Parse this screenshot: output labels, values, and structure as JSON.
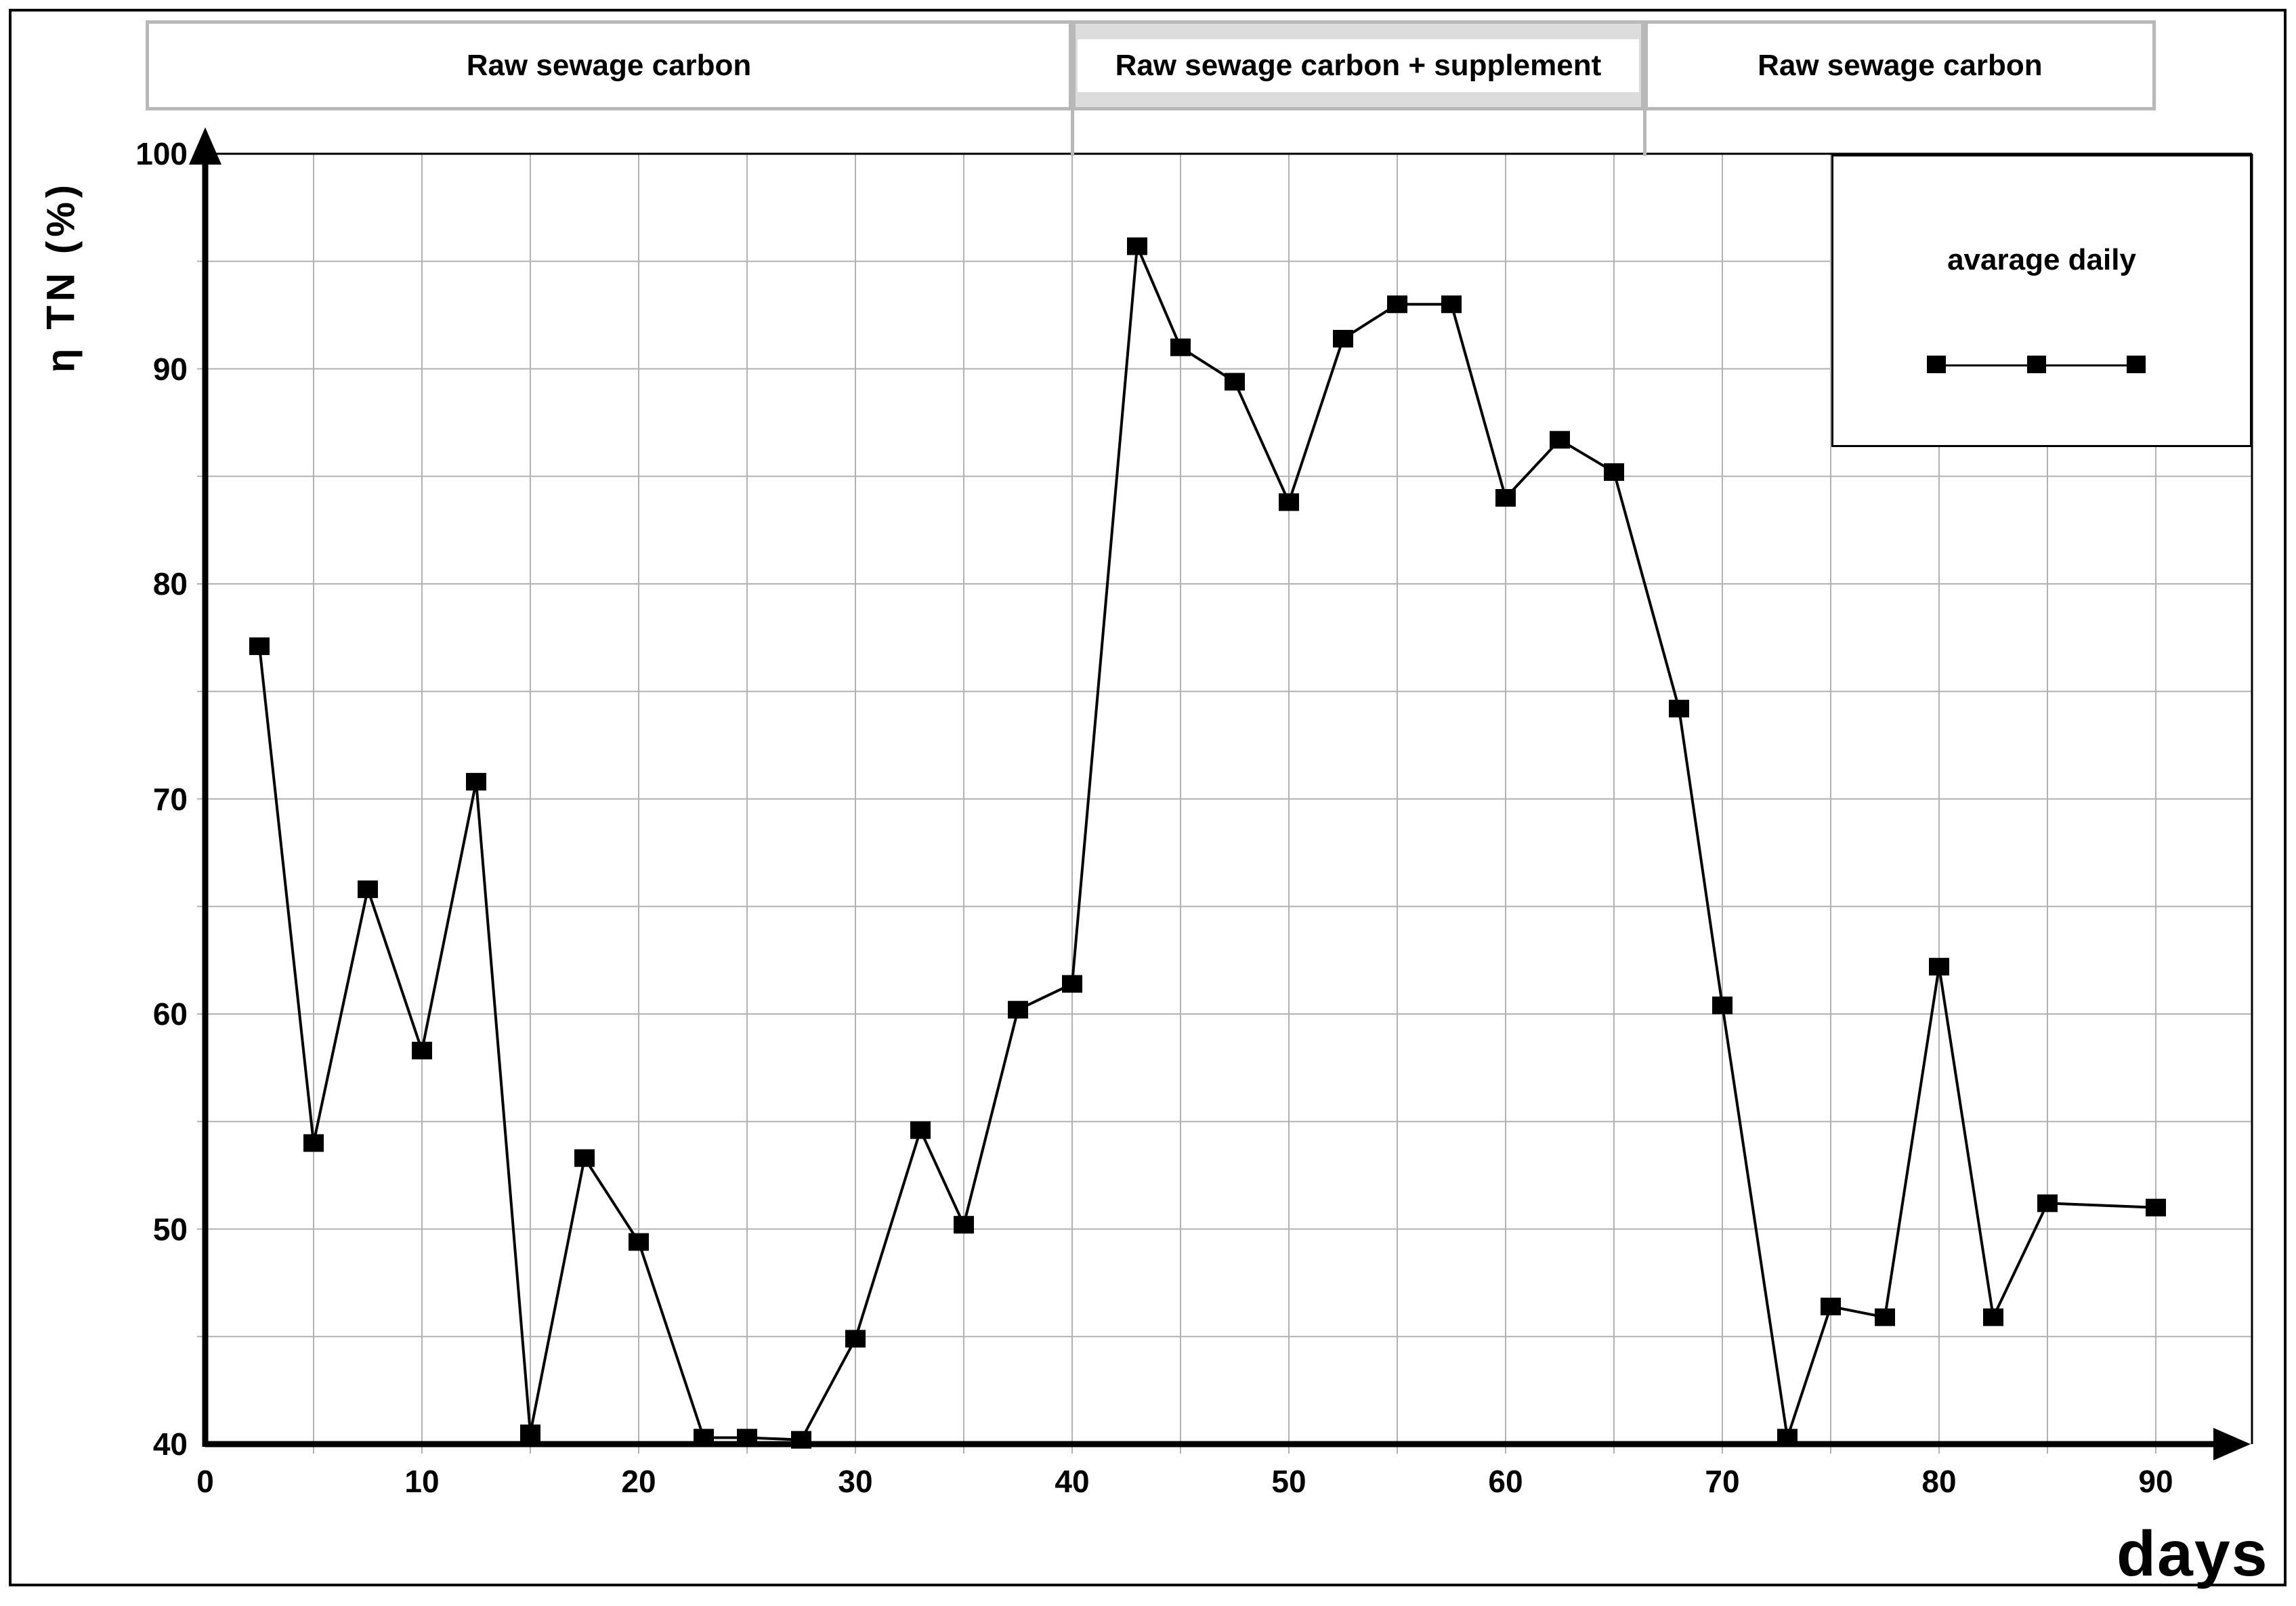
{
  "figure": {
    "x_axis_title": "days",
    "y_axis_title": "η  TN  (%)"
  },
  "chart_data": {
    "type": "line",
    "title": "",
    "xlabel": "days",
    "ylabel": "η  TN  (%)",
    "xlim": [
      0,
      94.5
    ],
    "ylim": [
      40,
      100
    ],
    "x_ticks": [
      0,
      10,
      20,
      30,
      40,
      50,
      60,
      70,
      80,
      90
    ],
    "y_ticks": [
      40,
      50,
      60,
      70,
      80,
      90,
      100
    ],
    "grid": {
      "x_step": 5,
      "y_step": 5,
      "color": "#b2b2b2"
    },
    "legend": {
      "label": "avarage daily",
      "position": "top-right",
      "marker": "black-square"
    },
    "line_color": "#000000",
    "marker": "square",
    "phase_bands": [
      {
        "label": "Raw sewage carbon",
        "from_day": -2.75,
        "to_day": 40,
        "shaded": false
      },
      {
        "label": "Raw sewage carbon + supplement",
        "from_day": 40,
        "to_day": 66.4,
        "shaded": true
      },
      {
        "label": "Raw sewage carbon",
        "from_day": 66.4,
        "to_day": 90,
        "shaded": false
      }
    ],
    "series": [
      {
        "name": "avarage daily",
        "points": [
          [
            2.5,
            77.1
          ],
          [
            5,
            54.0
          ],
          [
            7.5,
            65.8
          ],
          [
            10,
            58.3
          ],
          [
            12.5,
            70.8
          ],
          [
            15,
            40.5
          ],
          [
            17.5,
            53.3
          ],
          [
            20,
            49.4
          ],
          [
            23,
            40.3
          ],
          [
            25,
            40.3
          ],
          [
            27.5,
            40.2
          ],
          [
            30,
            44.9
          ],
          [
            33,
            54.6
          ],
          [
            35,
            50.2
          ],
          [
            37.5,
            60.2
          ],
          [
            40,
            61.4
          ],
          [
            43,
            95.7
          ],
          [
            45,
            91.0
          ],
          [
            47.5,
            89.4
          ],
          [
            50,
            83.8
          ],
          [
            52.5,
            91.4
          ],
          [
            55,
            93.0
          ],
          [
            57.5,
            93.0
          ],
          [
            60,
            84.0
          ],
          [
            62.5,
            86.7
          ],
          [
            65,
            85.2
          ],
          [
            68,
            74.2
          ],
          [
            70,
            60.4
          ],
          [
            73,
            40.3
          ],
          [
            75,
            46.4
          ],
          [
            77.5,
            45.9
          ],
          [
            80,
            62.2
          ],
          [
            82.5,
            45.9
          ],
          [
            85,
            51.2
          ],
          [
            90,
            51.0
          ]
        ]
      }
    ]
  }
}
